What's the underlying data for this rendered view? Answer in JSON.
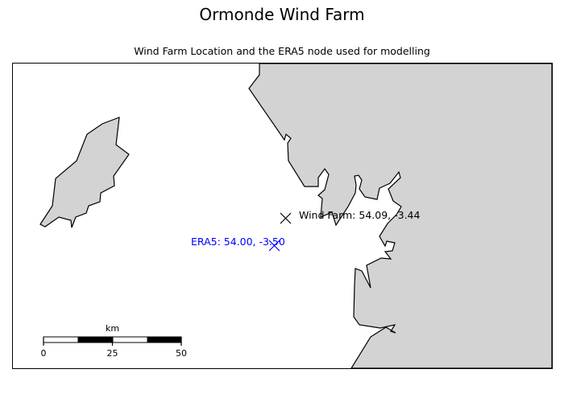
{
  "title": "Ormonde Wind Farm",
  "subtitle": "Wind Farm Location and the ERA5 node used for modelling",
  "colors": {
    "land": "#d3d3d3",
    "coastline": "#000000",
    "wind_farm_marker": "#000000",
    "era5_marker": "#0000ff"
  },
  "markers": {
    "wind_farm": {
      "label": "Wind Farm: 54.09, -3.44",
      "lat": 54.09,
      "lon": -3.44,
      "symbol": "x"
    },
    "era5": {
      "label": "ERA5: 54.00, -3.50",
      "lat": 54.0,
      "lon": -3.5,
      "symbol": "x"
    }
  },
  "scale_bar": {
    "unit": "km",
    "ticks": [
      "0",
      "25",
      "50"
    ]
  }
}
